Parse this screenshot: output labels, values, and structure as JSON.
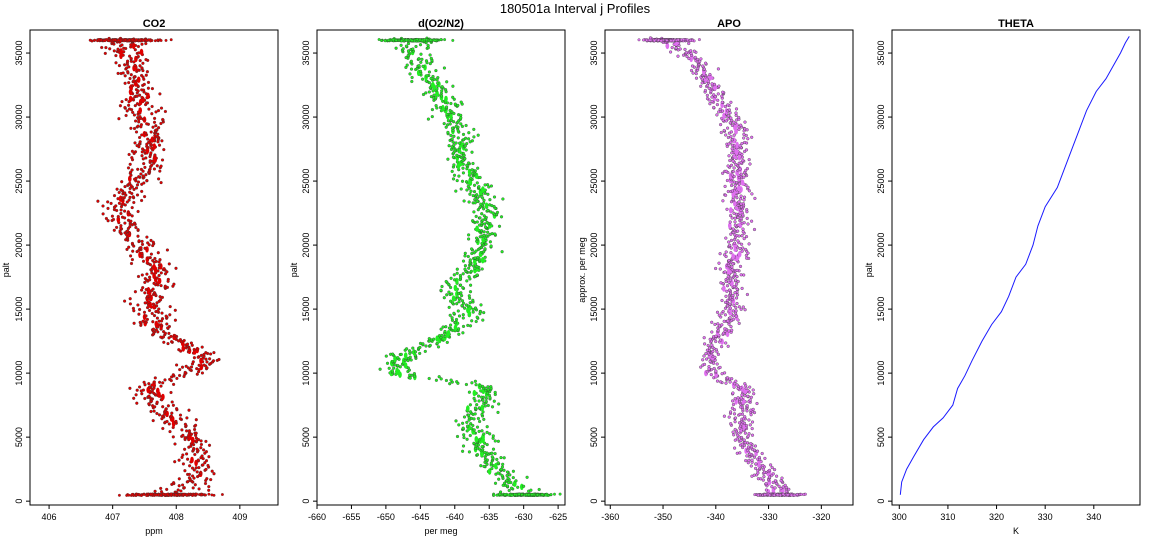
{
  "suptitle": "180501a   Interval j Profiles",
  "chart_data": [
    {
      "type": "scatter",
      "title": "CO2",
      "xlabel": "ppm",
      "ylabel": "palt",
      "xlim": [
        405.7,
        409.6
      ],
      "ylim": [
        -300,
        36800
      ],
      "xticks": [
        "406",
        "407",
        "408",
        "409"
      ],
      "yticks": [
        "0",
        "5000",
        "10000",
        "15000",
        "20000",
        "25000",
        "30000",
        "35000"
      ],
      "point_color": "#e00000",
      "points": [
        {
          "alt": 500,
          "center": 407.9,
          "spread": 0.6
        },
        {
          "alt": 2000,
          "center": 408.4,
          "spread": 0.25
        },
        {
          "alt": 4000,
          "center": 408.3,
          "spread": 0.25
        },
        {
          "alt": 6000,
          "center": 408.0,
          "spread": 0.28
        },
        {
          "alt": 8000,
          "center": 407.7,
          "spread": 0.3
        },
        {
          "alt": 9000,
          "center": 407.5,
          "spread": 0.3
        },
        {
          "alt": 10000,
          "center": 408.2,
          "spread": 0.3
        },
        {
          "alt": 11000,
          "center": 408.5,
          "spread": 0.3
        },
        {
          "alt": 12500,
          "center": 408.0,
          "spread": 0.3
        },
        {
          "alt": 14000,
          "center": 407.6,
          "spread": 0.28
        },
        {
          "alt": 16000,
          "center": 407.6,
          "spread": 0.3
        },
        {
          "alt": 18000,
          "center": 407.7,
          "spread": 0.3
        },
        {
          "alt": 20000,
          "center": 407.5,
          "spread": 0.28
        },
        {
          "alt": 22000,
          "center": 407.1,
          "spread": 0.28
        },
        {
          "alt": 24000,
          "center": 407.2,
          "spread": 0.28
        },
        {
          "alt": 26000,
          "center": 407.5,
          "spread": 0.28
        },
        {
          "alt": 28000,
          "center": 407.6,
          "spread": 0.3
        },
        {
          "alt": 30000,
          "center": 407.5,
          "spread": 0.3
        },
        {
          "alt": 32000,
          "center": 407.4,
          "spread": 0.28
        },
        {
          "alt": 34000,
          "center": 407.3,
          "spread": 0.26
        },
        {
          "alt": 36000,
          "center": 407.2,
          "spread": 0.5
        }
      ]
    },
    {
      "type": "scatter",
      "title": "d(O2/N2)",
      "xlabel": "per meg",
      "ylabel": "palt",
      "xlim": [
        -660,
        -624
      ],
      "ylim": [
        -300,
        36800
      ],
      "xticks": [
        "-660",
        "-655",
        "-650",
        "-645",
        "-640",
        "-635",
        "-630",
        "-625"
      ],
      "yticks": [
        "0",
        "5000",
        "10000",
        "15000",
        "20000",
        "25000",
        "30000",
        "35000"
      ],
      "point_color": "#22ee22",
      "points": [
        {
          "alt": 500,
          "center": -630,
          "spread": 4
        },
        {
          "alt": 2000,
          "center": -633,
          "spread": 2.5
        },
        {
          "alt": 4000,
          "center": -636,
          "spread": 2.5
        },
        {
          "alt": 6000,
          "center": -638,
          "spread": 2.5
        },
        {
          "alt": 8000,
          "center": -636,
          "spread": 2.5
        },
        {
          "alt": 9000,
          "center": -636,
          "spread": 2.5
        },
        {
          "alt": 10000,
          "center": -649,
          "spread": 2.5
        },
        {
          "alt": 11500,
          "center": -647,
          "spread": 2.5
        },
        {
          "alt": 13000,
          "center": -641,
          "spread": 2.5
        },
        {
          "alt": 14500,
          "center": -638,
          "spread": 2.5
        },
        {
          "alt": 16500,
          "center": -640,
          "spread": 2.5
        },
        {
          "alt": 18500,
          "center": -637,
          "spread": 2.5
        },
        {
          "alt": 20500,
          "center": -636,
          "spread": 2.5
        },
        {
          "alt": 22500,
          "center": -635,
          "spread": 2.5
        },
        {
          "alt": 24500,
          "center": -637,
          "spread": 2.5
        },
        {
          "alt": 26500,
          "center": -639,
          "spread": 2.5
        },
        {
          "alt": 28500,
          "center": -639,
          "spread": 2.5
        },
        {
          "alt": 30500,
          "center": -641,
          "spread": 2.5
        },
        {
          "alt": 32500,
          "center": -643,
          "spread": 2.5
        },
        {
          "alt": 34500,
          "center": -645,
          "spread": 2.5
        },
        {
          "alt": 36000,
          "center": -646,
          "spread": 4
        }
      ]
    },
    {
      "type": "scatter",
      "title": "APO",
      "xlabel": "",
      "ylabel": "approx. per meg",
      "xlim": [
        -361,
        -314
      ],
      "ylim": [
        -300,
        36800
      ],
      "xticks": [
        "-360",
        "-350",
        "-340",
        "-330",
        "-320"
      ],
      "yticks": [
        "0",
        "5000",
        "10000",
        "15000",
        "20000",
        "25000",
        "30000",
        "35000"
      ],
      "point_color": "#e070f0",
      "points": [
        {
          "alt": 500,
          "center": -328,
          "spread": 4
        },
        {
          "alt": 2000,
          "center": -330,
          "spread": 2.5
        },
        {
          "alt": 4000,
          "center": -334,
          "spread": 2.5
        },
        {
          "alt": 6000,
          "center": -335,
          "spread": 2.5
        },
        {
          "alt": 8000,
          "center": -335,
          "spread": 2.5
        },
        {
          "alt": 9000,
          "center": -335,
          "spread": 2.5
        },
        {
          "alt": 10000,
          "center": -341,
          "spread": 2.5
        },
        {
          "alt": 11500,
          "center": -341,
          "spread": 2.5
        },
        {
          "alt": 13000,
          "center": -339,
          "spread": 2.5
        },
        {
          "alt": 14500,
          "center": -337,
          "spread": 2.5
        },
        {
          "alt": 16500,
          "center": -337,
          "spread": 2.5
        },
        {
          "alt": 18500,
          "center": -337,
          "spread": 2.5
        },
        {
          "alt": 20500,
          "center": -336,
          "spread": 2.5
        },
        {
          "alt": 22500,
          "center": -336,
          "spread": 2.5
        },
        {
          "alt": 24500,
          "center": -336,
          "spread": 2.5
        },
        {
          "alt": 26500,
          "center": -336,
          "spread": 2.5
        },
        {
          "alt": 28500,
          "center": -336,
          "spread": 2.5
        },
        {
          "alt": 30500,
          "center": -338,
          "spread": 2.5
        },
        {
          "alt": 32500,
          "center": -341,
          "spread": 2.5
        },
        {
          "alt": 34500,
          "center": -344,
          "spread": 2.5
        },
        {
          "alt": 36000,
          "center": -349,
          "spread": 4
        }
      ]
    },
    {
      "type": "line",
      "title": "THETA",
      "xlabel": "K",
      "ylabel": "palt",
      "xlim": [
        298.5,
        349.5
      ],
      "ylim": [
        -300,
        36800
      ],
      "xticks": [
        "300",
        "310",
        "320",
        "330",
        "340"
      ],
      "yticks": [
        "0",
        "5000",
        "10000",
        "15000",
        "20000",
        "25000",
        "30000",
        "35000"
      ],
      "line_color": "#1a1aff",
      "points": [
        {
          "x": 300.2,
          "y": 500
        },
        {
          "x": 300.5,
          "y": 1500
        },
        {
          "x": 301.5,
          "y": 2500
        },
        {
          "x": 303,
          "y": 3500
        },
        {
          "x": 305,
          "y": 4800
        },
        {
          "x": 307,
          "y": 5800
        },
        {
          "x": 309,
          "y": 6500
        },
        {
          "x": 311,
          "y": 7500
        },
        {
          "x": 312,
          "y": 8800
        },
        {
          "x": 313.5,
          "y": 9800
        },
        {
          "x": 315,
          "y": 11000
        },
        {
          "x": 317,
          "y": 12500
        },
        {
          "x": 319,
          "y": 13800
        },
        {
          "x": 321,
          "y": 14800
        },
        {
          "x": 322.5,
          "y": 16000
        },
        {
          "x": 324,
          "y": 17500
        },
        {
          "x": 326,
          "y": 18500
        },
        {
          "x": 327.5,
          "y": 20000
        },
        {
          "x": 328.5,
          "y": 21500
        },
        {
          "x": 330,
          "y": 23000
        },
        {
          "x": 332.5,
          "y": 24500
        },
        {
          "x": 334,
          "y": 26000
        },
        {
          "x": 335.5,
          "y": 27500
        },
        {
          "x": 337,
          "y": 29000
        },
        {
          "x": 338.5,
          "y": 30500
        },
        {
          "x": 340.5,
          "y": 32000
        },
        {
          "x": 342.5,
          "y": 33000
        },
        {
          "x": 344,
          "y": 34000
        },
        {
          "x": 345.5,
          "y": 35000
        },
        {
          "x": 346.5,
          "y": 35800
        },
        {
          "x": 347.3,
          "y": 36300
        }
      ]
    }
  ]
}
